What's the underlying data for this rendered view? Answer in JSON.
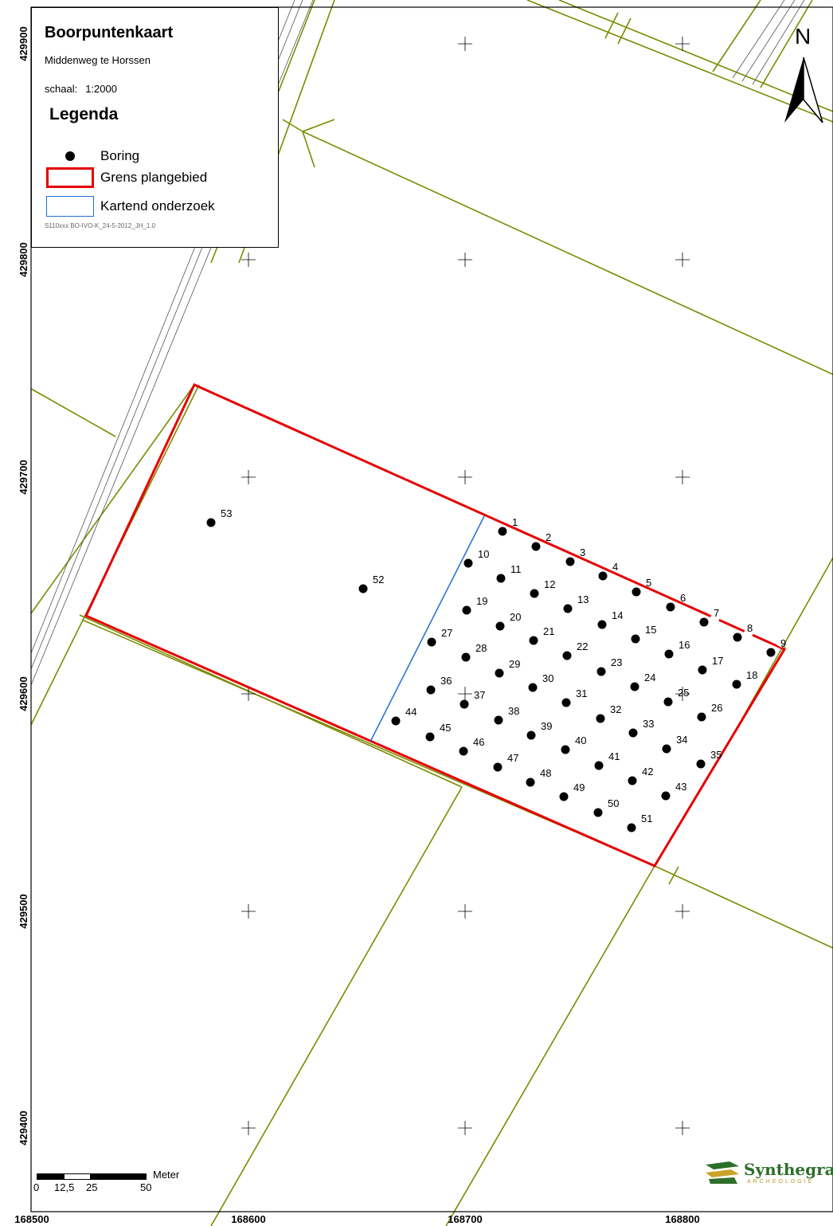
{
  "legend": {
    "title": "Boorpuntenkaart",
    "location": "Middenweg te Horssen",
    "scale_label": "schaal:",
    "scale_value": "1:2000",
    "heading": "Legenda",
    "items": [
      {
        "label": "Boring",
        "symbol": "black-dot"
      },
      {
        "label": "Grens plangebied",
        "symbol": "red-outline",
        "color": "#e60000"
      },
      {
        "label": "Kartend onderzoek",
        "symbol": "blue-outline",
        "color": "#1f6fd1"
      }
    ],
    "code": "S110xxx BO-IVO-K_24-5-2012_JH_1.0"
  },
  "north_arrow": {
    "label": "N"
  },
  "scalebar": {
    "unit": "Meter",
    "ticks": [
      "0",
      "12,5",
      "25",
      "50"
    ]
  },
  "logo": {
    "name": "Synthegra",
    "tagline": "ARCHEOLOGIE"
  },
  "axes": {
    "x_labels": [
      "168500",
      "168600",
      "168700",
      "168800"
    ],
    "y_labels": [
      "429900",
      "429800",
      "429700",
      "429600",
      "429500",
      "429400"
    ]
  },
  "colors": {
    "boundary": "#e60000",
    "survey_area": "#1f6fd1",
    "parcels": "#7b8a00",
    "road": "#555555",
    "grid": "#000000"
  },
  "borings": [
    "1",
    "2",
    "3",
    "4",
    "5",
    "6",
    "7",
    "8",
    "9",
    "10",
    "11",
    "12",
    "13",
    "14",
    "15",
    "16",
    "17",
    "18",
    "19",
    "20",
    "21",
    "22",
    "23",
    "24",
    "25",
    "26",
    "27",
    "28",
    "29",
    "30",
    "31",
    "32",
    "33",
    "34",
    "35",
    "36",
    "37",
    "38",
    "39",
    "40",
    "41",
    "42",
    "43",
    "44",
    "45",
    "46",
    "47",
    "48",
    "49",
    "50",
    "51",
    "52",
    "53"
  ]
}
